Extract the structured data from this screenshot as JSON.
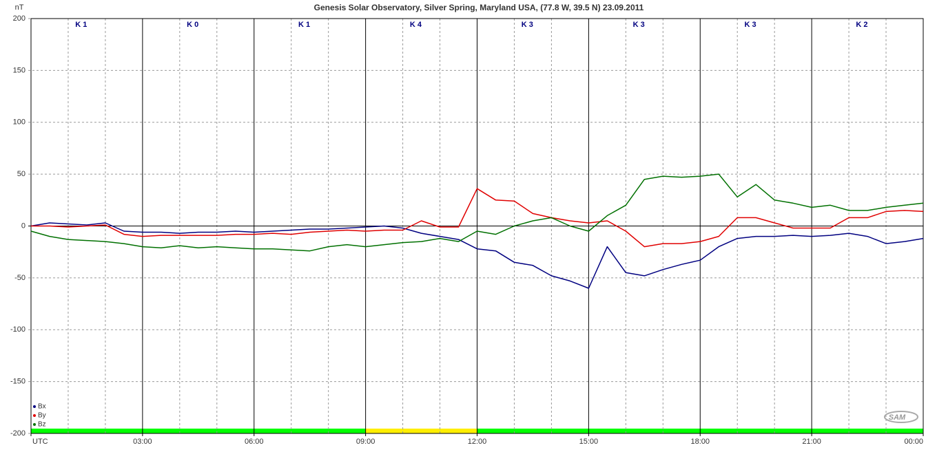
{
  "chart_data": {
    "type": "line",
    "title": "Genesis Solar Observatory, Silver Spring, Maryland USA, (77.8 W, 39.5 N)  23.09.2011",
    "y_label": "nT",
    "x": [
      0,
      0.5,
      1,
      1.5,
      2,
      2.5,
      3,
      3.5,
      4,
      4.5,
      5,
      5.5,
      6,
      6.5,
      7,
      7.5,
      8,
      8.5,
      9,
      9.5,
      10,
      10.5,
      11,
      11.5,
      12,
      12.5,
      13,
      13.5,
      14,
      14.5,
      15,
      15.5,
      16,
      16.5,
      17,
      17.5,
      18,
      18.5,
      19,
      19.5,
      20,
      20.5,
      21,
      21.5,
      22,
      22.5,
      23,
      23.5,
      24
    ],
    "xlim": [
      0,
      24
    ],
    "ylim": [
      -200,
      200
    ],
    "yticks": [
      -200,
      -150,
      -100,
      -50,
      0,
      50,
      100,
      150,
      200
    ],
    "xticks": [
      {
        "value": 0,
        "label": "UTC"
      },
      {
        "value": 3,
        "label": "03:00"
      },
      {
        "value": 6,
        "label": "06:00"
      },
      {
        "value": 9,
        "label": "09:00"
      },
      {
        "value": 12,
        "label": "12:00"
      },
      {
        "value": 15,
        "label": "15:00"
      },
      {
        "value": 18,
        "label": "18:00"
      },
      {
        "value": 21,
        "label": "21:00"
      },
      {
        "value": 24,
        "label": "00:00"
      }
    ],
    "x_minor_grid": [
      1,
      2,
      4,
      5,
      7,
      8,
      10,
      11,
      13,
      14,
      16,
      17,
      19,
      20,
      22,
      23
    ],
    "grid": true,
    "series": [
      {
        "name": "Bx",
        "color": "#000080",
        "values": [
          0,
          3,
          2,
          1,
          3,
          -5,
          -6,
          -6,
          -7,
          -6,
          -6,
          -5,
          -6,
          -5,
          -4,
          -3,
          -3,
          -2,
          -1,
          0,
          -2,
          -7,
          -10,
          -13,
          -22,
          -24,
          -35,
          -38,
          -48,
          -53,
          -60,
          -20,
          -45,
          -48,
          -42,
          -37,
          -33,
          -20,
          -12,
          -10,
          -10,
          -9,
          -10,
          -9,
          -7,
          -10,
          -17,
          -15,
          -12
        ]
      },
      {
        "name": "By",
        "color": "#e00000",
        "values": [
          0,
          0,
          -1,
          0,
          1,
          -8,
          -10,
          -9,
          -9,
          -9,
          -9,
          -8,
          -8,
          -7,
          -8,
          -6,
          -5,
          -4,
          -5,
          -4,
          -4,
          5,
          -1,
          -1,
          36,
          25,
          24,
          12,
          8,
          5,
          3,
          5,
          -5,
          -20,
          -17,
          -17,
          -15,
          -10,
          8,
          8,
          3,
          -2,
          -2,
          -2,
          8,
          8,
          14,
          15,
          14
        ]
      },
      {
        "name": "Bz",
        "color": "#007000",
        "values": [
          -5,
          -10,
          -13,
          -14,
          -15,
          -17,
          -20,
          -21,
          -19,
          -21,
          -20,
          -21,
          -22,
          -22,
          -23,
          -24,
          -20,
          -18,
          -20,
          -18,
          -16,
          -15,
          -12,
          -15,
          -5,
          -8,
          0,
          5,
          8,
          0,
          -5,
          10,
          20,
          45,
          48,
          47,
          48,
          50,
          28,
          40,
          25,
          22,
          18,
          20,
          15,
          15,
          18,
          20,
          22
        ]
      }
    ],
    "k_index": {
      "labels": [
        "K 1",
        "K 0",
        "K 1",
        "K 4",
        "K 3",
        "K 3",
        "K 3",
        "K 2"
      ],
      "bar_colors": [
        "#00ff00",
        "#00ff00",
        "#00ff00",
        "#ffee00",
        "#00ff00",
        "#00ff00",
        "#00ff00",
        "#00ff00"
      ]
    },
    "logo": "SAM"
  }
}
